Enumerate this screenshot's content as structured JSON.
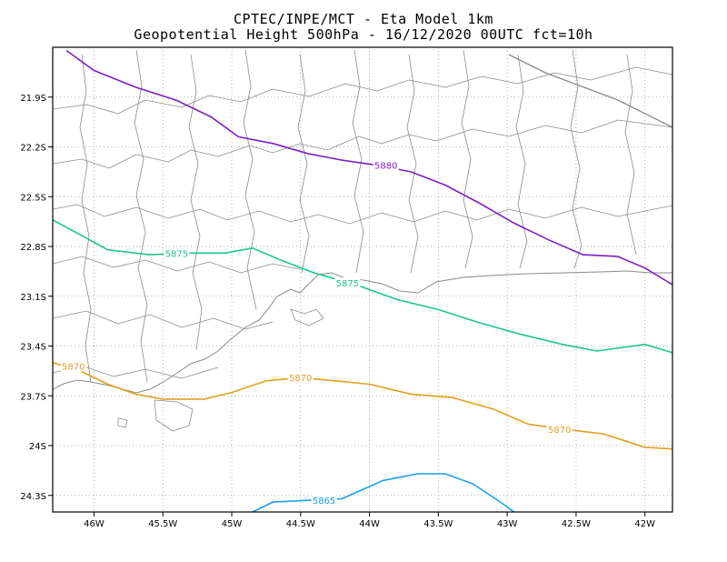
{
  "title": {
    "line1": "CPTEC/INPE/MCT -  Eta Model 1km",
    "line2": "Geopotential Height 500hPa - 16/12/2020 00UTC fct=10h"
  },
  "map": {
    "lon_range": [
      -46.3,
      -41.8
    ],
    "lat_range": [
      -24.4,
      -21.6
    ],
    "lon_ticks": [
      {
        "value": -46,
        "label": "46W"
      },
      {
        "value": -45.5,
        "label": "45.5W"
      },
      {
        "value": -45,
        "label": "45W"
      },
      {
        "value": -44.5,
        "label": "44.5W"
      },
      {
        "value": -44,
        "label": "44W"
      },
      {
        "value": -43.5,
        "label": "43.5W"
      },
      {
        "value": -43,
        "label": "43W"
      },
      {
        "value": -42.5,
        "label": "42.5W"
      },
      {
        "value": -42,
        "label": "42W"
      }
    ],
    "lat_ticks": [
      {
        "value": -21.9,
        "label": "21.9S"
      },
      {
        "value": -22.2,
        "label": "22.2S"
      },
      {
        "value": -22.5,
        "label": "22.5S"
      },
      {
        "value": -22.8,
        "label": "22.8S"
      },
      {
        "value": -23.1,
        "label": "23.1S"
      },
      {
        "value": -23.4,
        "label": "23.4S"
      },
      {
        "value": -23.7,
        "label": "23.7S"
      },
      {
        "value": -24.0,
        "label": "24S"
      },
      {
        "value": -24.3,
        "label": "24.3S"
      }
    ],
    "contours": [
      {
        "level": "5880",
        "color": "#7a1fc4",
        "points": [
          [
            -46.2,
            -21.62
          ],
          [
            -46.0,
            -21.74
          ],
          [
            -45.7,
            -21.84
          ],
          [
            -45.4,
            -21.92
          ],
          [
            -45.15,
            -22.02
          ],
          [
            -44.95,
            -22.14
          ],
          [
            -44.7,
            -22.18
          ],
          [
            -44.45,
            -22.24
          ],
          [
            -44.2,
            -22.28
          ],
          [
            -43.95,
            -22.31
          ],
          [
            -43.7,
            -22.35
          ],
          [
            -43.45,
            -22.43
          ],
          [
            -43.2,
            -22.54
          ],
          [
            -42.95,
            -22.66
          ],
          [
            -42.7,
            -22.76
          ],
          [
            -42.45,
            -22.85
          ],
          [
            -42.2,
            -22.86
          ],
          [
            -42.0,
            -22.93
          ],
          [
            -41.8,
            -23.03
          ]
        ],
        "label_positions": [
          [
            -43.88,
            -22.31
          ]
        ]
      },
      {
        "level": "5875",
        "color": "#1fc490",
        "points": [
          [
            -46.3,
            -22.64
          ],
          [
            -46.1,
            -22.73
          ],
          [
            -45.9,
            -22.82
          ],
          [
            -45.6,
            -22.85
          ],
          [
            -45.3,
            -22.84
          ],
          [
            -45.05,
            -22.84
          ],
          [
            -44.85,
            -22.81
          ],
          [
            -44.65,
            -22.88
          ],
          [
            -44.4,
            -22.96
          ],
          [
            -44.1,
            -23.03
          ],
          [
            -43.8,
            -23.12
          ],
          [
            -43.5,
            -23.18
          ],
          [
            -43.2,
            -23.26
          ],
          [
            -42.9,
            -23.33
          ],
          [
            -42.6,
            -23.39
          ],
          [
            -42.35,
            -23.43
          ],
          [
            -42.0,
            -23.39
          ],
          [
            -41.8,
            -23.44
          ]
        ],
        "label_positions": [
          [
            -45.4,
            -22.84
          ],
          [
            -44.16,
            -23.02
          ]
        ]
      },
      {
        "level": "5870",
        "color": "#e0a020",
        "points": [
          [
            -46.3,
            -23.5
          ],
          [
            -46.1,
            -23.55
          ],
          [
            -45.9,
            -23.63
          ],
          [
            -45.7,
            -23.69
          ],
          [
            -45.5,
            -23.72
          ],
          [
            -45.2,
            -23.72
          ],
          [
            -45.0,
            -23.68
          ],
          [
            -44.75,
            -23.61
          ],
          [
            -44.5,
            -23.59
          ],
          [
            -44.25,
            -23.61
          ],
          [
            -44.0,
            -23.63
          ],
          [
            -43.7,
            -23.69
          ],
          [
            -43.4,
            -23.71
          ],
          [
            -43.1,
            -23.78
          ],
          [
            -42.85,
            -23.87
          ],
          [
            -42.6,
            -23.9
          ],
          [
            -42.3,
            -23.93
          ],
          [
            -42.0,
            -24.01
          ],
          [
            -41.8,
            -24.02
          ]
        ],
        "label_positions": [
          [
            -46.15,
            -23.52
          ],
          [
            -44.5,
            -23.59
          ],
          [
            -42.62,
            -23.9
          ]
        ]
      },
      {
        "level": "5865",
        "color": "#1a9ee6",
        "points": [
          [
            -44.85,
            -24.4
          ],
          [
            -44.7,
            -24.34
          ],
          [
            -44.45,
            -24.33
          ],
          [
            -44.2,
            -24.32
          ],
          [
            -43.9,
            -24.21
          ],
          [
            -43.65,
            -24.17
          ],
          [
            -43.45,
            -24.17
          ],
          [
            -43.25,
            -24.23
          ],
          [
            -43.05,
            -24.34
          ],
          [
            -42.95,
            -24.4
          ]
        ],
        "label_positions": [
          [
            -44.33,
            -24.33
          ]
        ]
      }
    ]
  }
}
